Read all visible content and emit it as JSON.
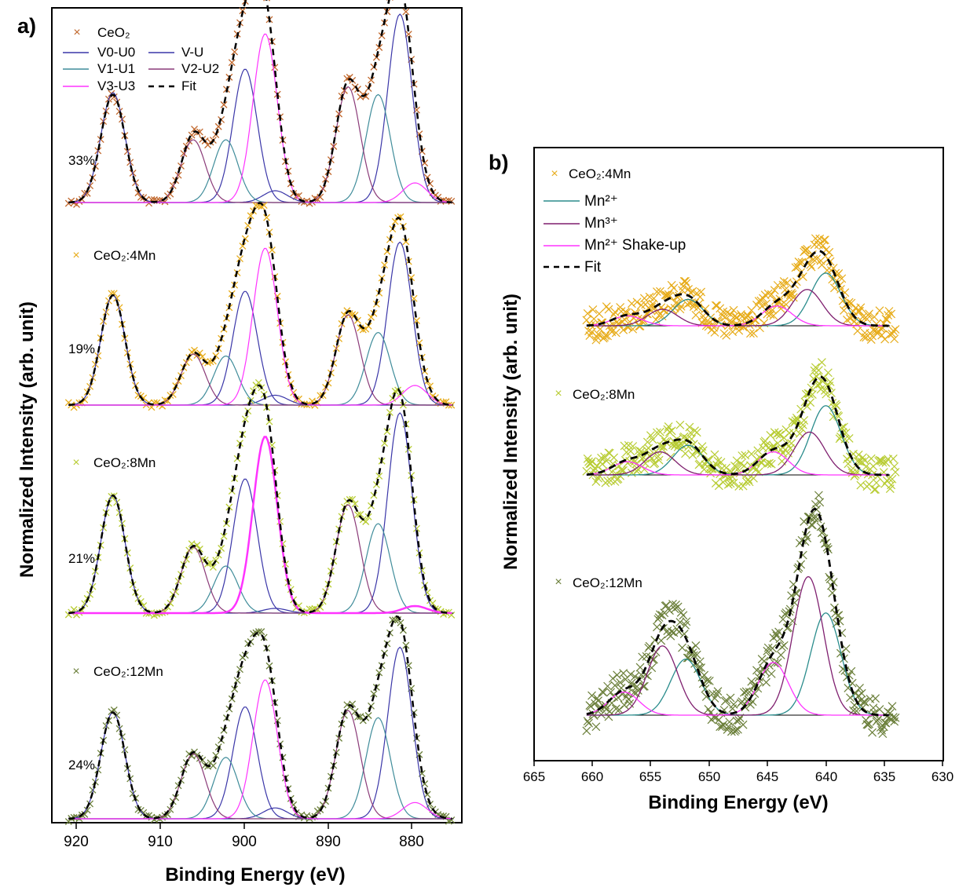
{
  "colors": {
    "ceo2": "#c0662a",
    "ceo2_4mn": "#e7ac1a",
    "ceo2_8mn": "#b8cc33",
    "ceo2_12mn": "#6b7f3a",
    "v0u0": "#3a36a8",
    "v1u1": "#3f8c9a",
    "v2u2": "#8a3a78",
    "v3u3": "#ff33ff",
    "vu": "#3a36a8",
    "mn2": "#2a8c8c",
    "mn3": "#7f1f6f",
    "mn2_shake": "#ff33ff",
    "fit": "#000000"
  },
  "panel_a": {
    "label": "a)",
    "xlabel": "Binding Energy (eV)",
    "ylabel": "Normalized Intensity (arb. unit)",
    "xticks": [
      "920",
      "910",
      "900",
      "890",
      "880"
    ],
    "legend": {
      "ceo2": "CeO₂",
      "v0u0": "V0-U0",
      "vu": "V-U",
      "v1u1": "V1-U1",
      "v2u2": "V2-U2",
      "v3u3": "V3-U3",
      "fit": "Fit"
    },
    "sample_labels": [
      "CeO₂:4Mn",
      "CeO₂:8Mn",
      "CeO₂:12Mn"
    ],
    "percentages": [
      "33%",
      "19%",
      "21%",
      "24%"
    ]
  },
  "panel_b": {
    "label": "b)",
    "xlabel": "Binding Energy (eV)",
    "ylabel": "Normalized Intensity (arb. unit)",
    "xticks": [
      "665",
      "660",
      "655",
      "650",
      "645",
      "640",
      "635",
      "630"
    ],
    "legend": {
      "ceo2_4mn": "CeO₂:4Mn",
      "mn2": "Mn²⁺",
      "mn3": "Mn³⁺",
      "mn2_shake": "Mn²⁺ Shake-up",
      "fit": "Fit"
    },
    "sample_labels": [
      "CeO₂:8Mn",
      "CeO₂:12Mn"
    ]
  },
  "chart_data": [
    {
      "type": "line",
      "panel": "a",
      "xlabel": "Binding Energy (eV)",
      "ylabel": "Normalized Intensity (arb. unit)",
      "xlim": [
        924,
        875
      ],
      "xticks": [
        920,
        910,
        900,
        890,
        880
      ],
      "spectra": [
        {
          "name": "CeO₂",
          "percentage": "33%",
          "components": [
            {
              "name": "V0-U0",
              "peaks": [
                {
                  "x": 916.7,
                  "h": 0.56
                },
                {
                  "x": 897.3,
                  "h": 0.06
                }
              ]
            },
            {
              "name": "V-U",
              "peaks": [
                {
                  "x": 900.9,
                  "h": 0.68
                },
                {
                  "x": 882.4,
                  "h": 0.96
                }
              ]
            },
            {
              "name": "V1-U1",
              "peaks": [
                {
                  "x": 903.2,
                  "h": 0.32
                },
                {
                  "x": 885.0,
                  "h": 0.55
                }
              ]
            },
            {
              "name": "V2-U2",
              "peaks": [
                {
                  "x": 907.1,
                  "h": 0.32
                },
                {
                  "x": 888.6,
                  "h": 0.59
                }
              ]
            },
            {
              "name": "V3-U3",
              "peaks": [
                {
                  "x": 898.5,
                  "h": 0.86
                },
                {
                  "x": 880.6,
                  "h": 0.1
                }
              ]
            }
          ],
          "fit_peaks": [
            {
              "x": 916.7,
              "h": 0.55
            },
            {
              "x": 907.0,
              "h": 0.35
            },
            {
              "x": 903.2,
              "h": 0.33
            },
            {
              "x": 900.9,
              "h": 0.7
            },
            {
              "x": 898.5,
              "h": 0.89
            },
            {
              "x": 888.6,
              "h": 0.6
            },
            {
              "x": 885.0,
              "h": 0.55
            },
            {
              "x": 882.4,
              "h": 0.97
            },
            {
              "x": 880.7,
              "h": 0.1
            }
          ]
        },
        {
          "name": "CeO₂:4Mn",
          "percentage": "19%",
          "components": [
            {
              "name": "V0-U0",
              "peaks": [
                {
                  "x": 916.7,
                  "h": 0.56
                },
                {
                  "x": 897.3,
                  "h": 0.05
                }
              ]
            },
            {
              "name": "V-U",
              "peaks": [
                {
                  "x": 900.9,
                  "h": 0.58
                },
                {
                  "x": 882.4,
                  "h": 0.83
                }
              ]
            },
            {
              "name": "V1-U1",
              "peaks": [
                {
                  "x": 903.2,
                  "h": 0.25
                },
                {
                  "x": 885.0,
                  "h": 0.37
                }
              ]
            },
            {
              "name": "V2-U2",
              "peaks": [
                {
                  "x": 907.1,
                  "h": 0.26
                },
                {
                  "x": 888.6,
                  "h": 0.46
                }
              ]
            },
            {
              "name": "V3-U3",
              "peaks": [
                {
                  "x": 898.5,
                  "h": 0.8
                },
                {
                  "x": 880.6,
                  "h": 0.1
                }
              ]
            }
          ]
        },
        {
          "name": "CeO₂:8Mn",
          "percentage": "21%",
          "components": [
            {
              "name": "V0-U0",
              "peaks": [
                {
                  "x": 916.7,
                  "h": 0.5
                },
                {
                  "x": 897.3,
                  "h": 0.02
                }
              ]
            },
            {
              "name": "V-U",
              "peaks": [
                {
                  "x": 900.9,
                  "h": 0.57
                },
                {
                  "x": 882.4,
                  "h": 0.85
                }
              ]
            },
            {
              "name": "V1-U1",
              "peaks": [
                {
                  "x": 903.2,
                  "h": 0.2
                },
                {
                  "x": 885.0,
                  "h": 0.38
                }
              ]
            },
            {
              "name": "V2-U2",
              "peaks": [
                {
                  "x": 907.1,
                  "h": 0.28
                },
                {
                  "x": 888.6,
                  "h": 0.46
                }
              ]
            },
            {
              "name": "V3-U3",
              "peaks": [
                {
                  "x": 898.5,
                  "h": 0.75
                },
                {
                  "x": 880.6,
                  "h": 0.03
                }
              ]
            }
          ]
        },
        {
          "name": "CeO₂:12Mn",
          "percentage": "24%",
          "components": [
            {
              "name": "V0-U0",
              "peaks": [
                {
                  "x": 916.7,
                  "h": 0.59
                },
                {
                  "x": 897.3,
                  "h": 0.06
                }
              ]
            },
            {
              "name": "V-U",
              "peaks": [
                {
                  "x": 900.9,
                  "h": 0.62
                },
                {
                  "x": 882.4,
                  "h": 0.95
                }
              ]
            },
            {
              "name": "V1-U1",
              "peaks": [
                {
                  "x": 903.2,
                  "h": 0.34
                },
                {
                  "x": 885.0,
                  "h": 0.56
                }
              ]
            },
            {
              "name": "V2-U2",
              "peaks": [
                {
                  "x": 907.1,
                  "h": 0.36
                },
                {
                  "x": 888.6,
                  "h": 0.6
                }
              ]
            },
            {
              "name": "V3-U3",
              "peaks": [
                {
                  "x": 898.5,
                  "h": 0.77
                },
                {
                  "x": 880.6,
                  "h": 0.09
                }
              ]
            }
          ]
        }
      ]
    },
    {
      "type": "line",
      "panel": "b",
      "xlabel": "Binding Energy (eV)",
      "ylabel": "Normalized Intensity (arb. unit)",
      "xlim": [
        665,
        630
      ],
      "xticks": [
        665,
        660,
        655,
        650,
        645,
        640,
        635,
        630
      ],
      "spectra": [
        {
          "name": "CeO₂:4Mn",
          "components": [
            {
              "name": "Mn²⁺",
              "peaks": [
                {
                  "x": 640.0,
                  "h": 0.16
                },
                {
                  "x": 651.8,
                  "h": 0.08
                }
              ]
            },
            {
              "name": "Mn³⁺",
              "peaks": [
                {
                  "x": 641.6,
                  "h": 0.11
                },
                {
                  "x": 654.0,
                  "h": 0.05
                }
              ]
            },
            {
              "name": "Mn²⁺ Shake-up",
              "peaks": [
                {
                  "x": 644.2,
                  "h": 0.06
                },
                {
                  "x": 657.0,
                  "h": 0.03
                }
              ]
            }
          ]
        },
        {
          "name": "CeO₂:8Mn",
          "components": [
            {
              "name": "Mn²⁺",
              "peaks": [
                {
                  "x": 640.0,
                  "h": 0.21
                },
                {
                  "x": 651.8,
                  "h": 0.09
                }
              ]
            },
            {
              "name": "Mn³⁺",
              "peaks": [
                {
                  "x": 641.4,
                  "h": 0.13
                },
                {
                  "x": 654.2,
                  "h": 0.07
                }
              ]
            },
            {
              "name": "Mn²⁺ Shake-up",
              "peaks": [
                {
                  "x": 644.5,
                  "h": 0.07
                },
                {
                  "x": 657.0,
                  "h": 0.04
                }
              ]
            }
          ]
        },
        {
          "name": "CeO₂:12Mn",
          "components": [
            {
              "name": "Mn²⁺",
              "peaks": [
                {
                  "x": 640.0,
                  "h": 0.31
                },
                {
                  "x": 652.0,
                  "h": 0.17
                }
              ]
            },
            {
              "name": "Mn³⁺",
              "peaks": [
                {
                  "x": 641.5,
                  "h": 0.42
                },
                {
                  "x": 654.0,
                  "h": 0.21
                }
              ]
            },
            {
              "name": "Mn²⁺ Shake-up",
              "peaks": [
                {
                  "x": 644.5,
                  "h": 0.16
                },
                {
                  "x": 657.3,
                  "h": 0.07
                }
              ]
            }
          ]
        }
      ]
    }
  ]
}
